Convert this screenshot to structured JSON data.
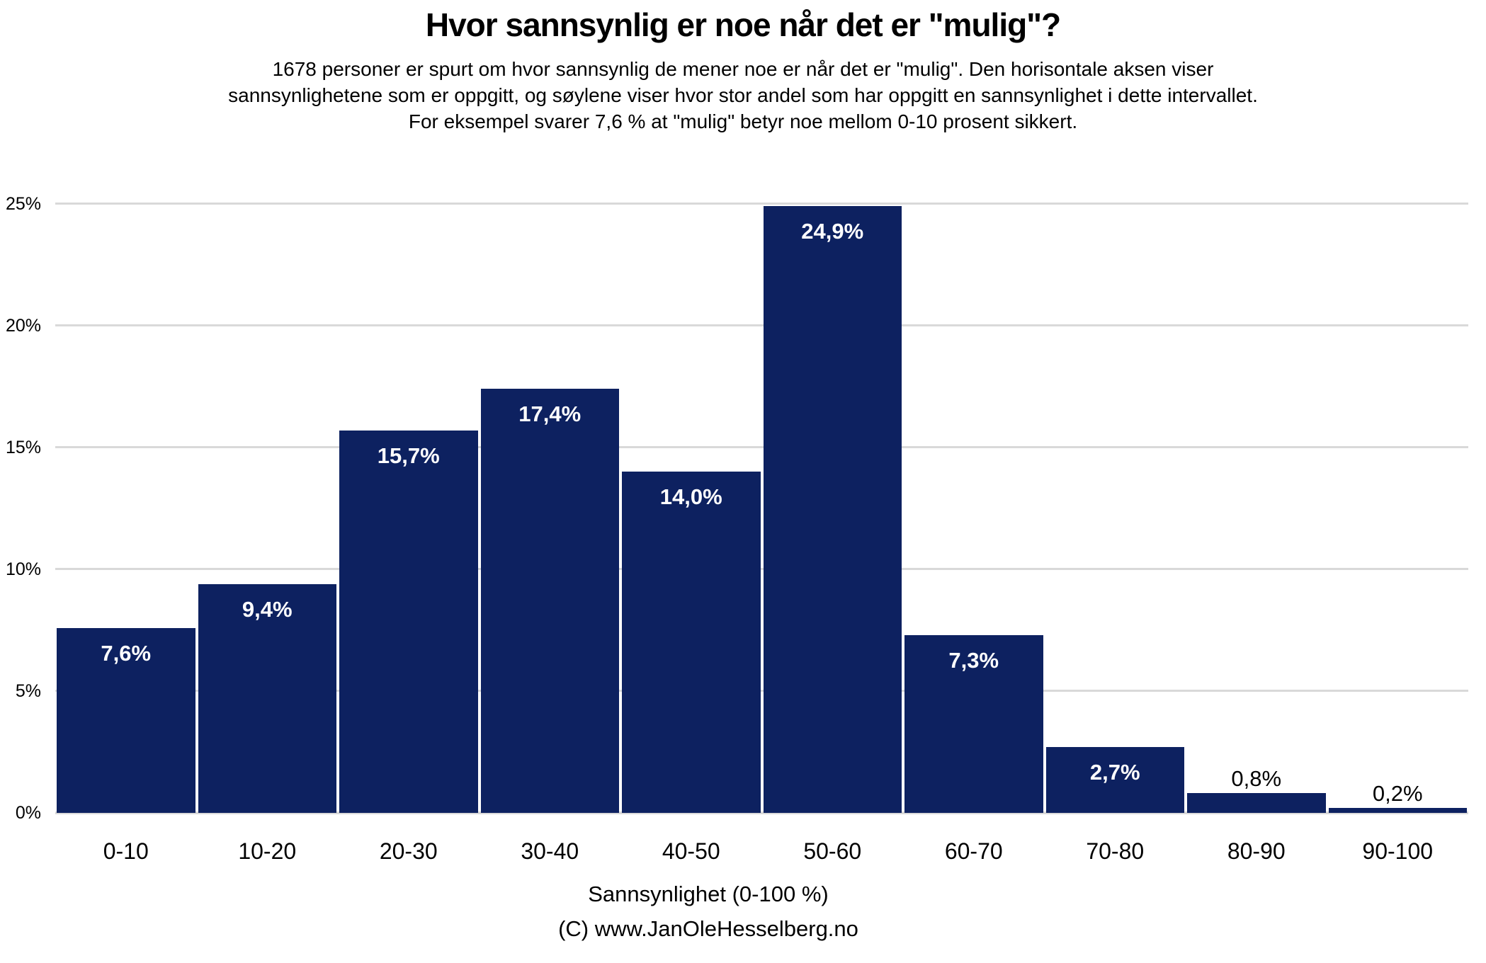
{
  "chart_data": {
    "type": "bar",
    "title": "Hvor sannsynlig er noe når det er \"mulig\"?",
    "subtitle_lines": [
      "1678 personer er spurt om hvor sannsynlig de mener noe er når det er \"mulig\". Den horisontale aksen viser",
      "sannsynlighetene som er oppgitt, og søylene viser hvor stor andel som har oppgitt en sannsynlighet i dette intervallet.",
      "For eksempel svarer 7,6 % at \"mulig\" betyr noe mellom 0-10 prosent sikkert."
    ],
    "categories": [
      "0-10",
      "10-20",
      "20-30",
      "30-40",
      "40-50",
      "50-60",
      "60-70",
      "70-80",
      "80-90",
      "90-100"
    ],
    "values": [
      7.6,
      9.4,
      15.7,
      17.4,
      14.0,
      24.9,
      7.3,
      2.7,
      0.8,
      0.2
    ],
    "value_labels": [
      "7,6%",
      "9,4%",
      "15,7%",
      "17,4%",
      "14,0%",
      "24,9%",
      "7,3%",
      "2,7%",
      "0,8%",
      "0,2%"
    ],
    "xlabel": "Sannsynlighet (0-100 %)",
    "ylabel": "",
    "ylim": [
      0,
      25
    ],
    "yticks": [
      0,
      5,
      10,
      15,
      20,
      25
    ],
    "ytick_labels": [
      "0%",
      "5%",
      "10%",
      "15%",
      "20%",
      "25%"
    ],
    "grid": true,
    "legend": false,
    "bar_color": "#0d2160",
    "grid_color": "#d9d9d9",
    "label_inside_color": "#ffffff",
    "label_outside_color": "#000000",
    "outside_label_threshold": 1.5,
    "caption": "(C) www.JanOleHesselberg.no"
  }
}
